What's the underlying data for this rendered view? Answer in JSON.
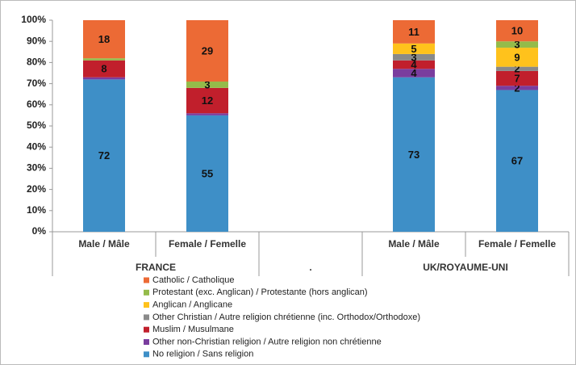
{
  "chart_data": {
    "type": "stacked_bar",
    "groups": [
      {
        "name": "FRANCE",
        "categories": [
          "Male / Mâle",
          "Female / Femelle"
        ]
      },
      {
        "name": ".",
        "categories": [
          null
        ]
      },
      {
        "name": "UK/ROYAUME-UNI",
        "categories": [
          "Male / Mâle",
          "Female / Femelle"
        ]
      }
    ],
    "series": [
      {
        "name": "No religion / Sans religion",
        "color": "#3e8fc7",
        "values": [
          72,
          55,
          null,
          73,
          67
        ]
      },
      {
        "name": "Other non-Christian religion / Autre religion non chrétienne",
        "color": "#7a3d9e",
        "values": [
          1,
          1,
          null,
          4,
          2
        ]
      },
      {
        "name": "Muslim / Musulmane",
        "color": "#c11f2c",
        "values": [
          8,
          12,
          null,
          4,
          7
        ]
      },
      {
        "name": "Other Christian / Autre religion chrétienne (inc. Orthodox/Orthodoxe)",
        "color": "#8a8a8a",
        "values": [
          0,
          0,
          null,
          3,
          2
        ]
      },
      {
        "name": "Anglican / Anglicane",
        "color": "#ffc21c",
        "values": [
          0,
          0,
          null,
          5,
          9
        ]
      },
      {
        "name": "Protestant (exc. Anglican) / Protestante (hors anglican)",
        "color": "#94bb4a",
        "values": [
          1,
          3,
          null,
          0,
          3
        ]
      },
      {
        "name": "Catholic / Catholique",
        "color": "#ec6a35",
        "values": [
          18,
          29,
          null,
          11,
          10
        ]
      }
    ],
    "ylim": [
      0,
      100
    ],
    "yticks": [
      {
        "value": 0,
        "label": "0%"
      },
      {
        "value": 10,
        "label": "10%"
      },
      {
        "value": 20,
        "label": "20%"
      },
      {
        "value": 30,
        "label": "30%"
      },
      {
        "value": 40,
        "label": "40%"
      },
      {
        "value": 50,
        "label": "50%"
      },
      {
        "value": 60,
        "label": "60%"
      },
      {
        "value": 70,
        "label": "70%"
      },
      {
        "value": 80,
        "label": "80%"
      },
      {
        "value": 90,
        "label": "90%"
      },
      {
        "value": 100,
        "label": "100%"
      }
    ],
    "grid": false,
    "legend": "bottom"
  }
}
